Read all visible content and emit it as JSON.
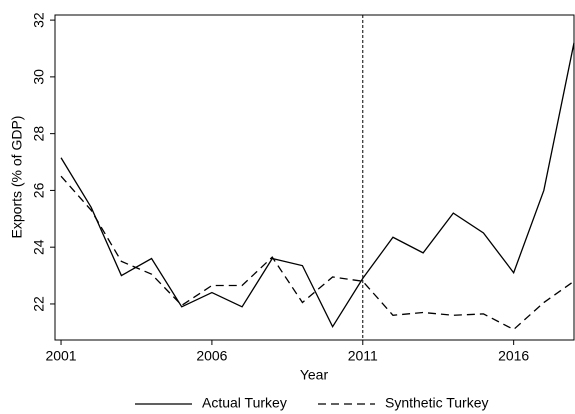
{
  "chart_data": {
    "type": "line",
    "x_label": "Year",
    "y_label": "Exports (% of GDP)",
    "x": [
      2001,
      2002,
      2003,
      2004,
      2005,
      2006,
      2007,
      2008,
      2009,
      2010,
      2011,
      2012,
      2013,
      2014,
      2015,
      2016,
      2017,
      2018
    ],
    "series": [
      {
        "name": "Actual Turkey",
        "color": "#000000",
        "dash": "solid",
        "values": [
          27.15,
          25.4,
          23.0,
          23.6,
          21.9,
          22.4,
          21.9,
          23.6,
          23.35,
          21.2,
          22.9,
          24.35,
          23.8,
          25.2,
          24.5,
          23.1,
          26.0,
          31.2
        ]
      },
      {
        "name": "Synthetic Turkey",
        "color": "#000000",
        "dash": "dashed",
        "values": [
          26.5,
          25.3,
          23.5,
          23.05,
          21.95,
          22.65,
          22.65,
          23.65,
          22.05,
          22.95,
          22.8,
          21.6,
          21.7,
          21.6,
          21.65,
          21.1,
          22.05,
          22.8
        ]
      }
    ],
    "xlim": [
      2000.8,
      2018
    ],
    "ylim": [
      20.73,
      32.18
    ],
    "xticks": [
      2001,
      2006,
      2011,
      2016
    ],
    "yticks": [
      22,
      24,
      26,
      28,
      30,
      32
    ],
    "vline": 2011,
    "grid": false,
    "legend": "bottom"
  }
}
